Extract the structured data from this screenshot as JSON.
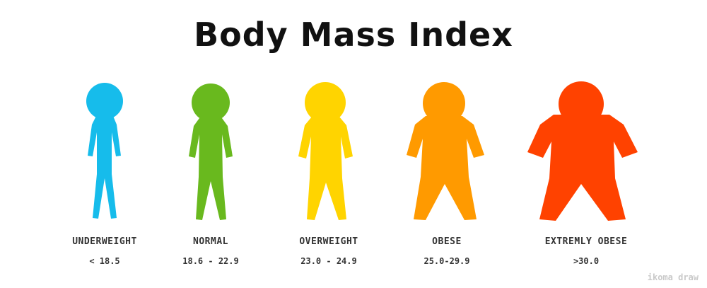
{
  "title": "Body Mass Index",
  "credit": "ikoma draw",
  "categories": [
    {
      "name": "UNDERWEIGHT",
      "range": "< 18.5",
      "color": "#16BCEB"
    },
    {
      "name": "NORMAL",
      "range": "18.6 - 22.9",
      "color": "#69B91E"
    },
    {
      "name": "OVERWEIGHT",
      "range": "23.0 - 24.9",
      "color": "#FFD400"
    },
    {
      "name": "OBESE",
      "range": "25.0-29.9",
      "color": "#FF9A00"
    },
    {
      "name": "EXTREMLY OBESE",
      "range": ">30.0",
      "color": "#FF4200"
    }
  ]
}
